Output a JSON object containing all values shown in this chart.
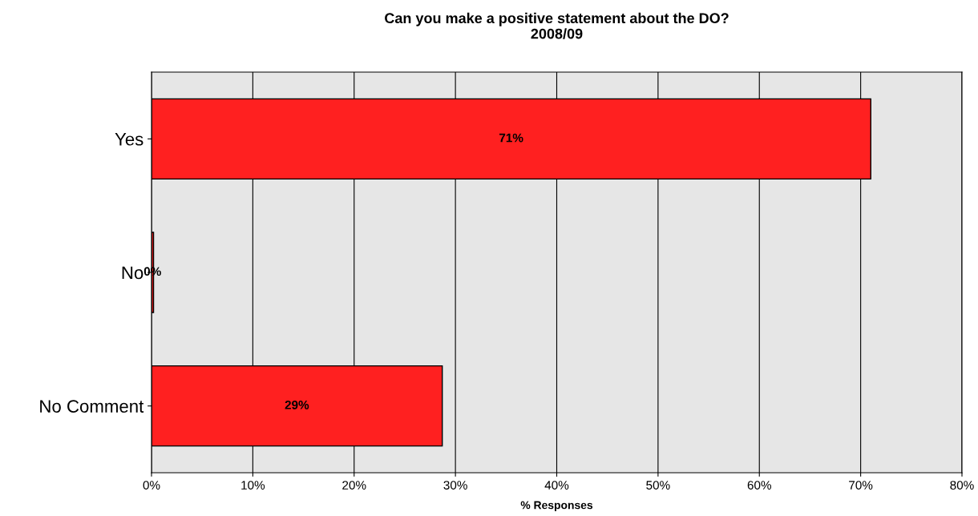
{
  "chart_data": {
    "type": "bar",
    "orientation": "horizontal",
    "title": "Can you make a positive statement about the DO?\n2008/09",
    "xlabel": "% Responses",
    "categories": [
      "Yes",
      "No",
      "No Comment"
    ],
    "values": [
      71,
      0.2,
      28.7
    ],
    "value_labels": [
      "71%",
      "0%",
      "29%"
    ],
    "color": "#ff2020",
    "xlim": [
      0,
      80
    ],
    "xticks": [
      {
        "value": 0,
        "label": "0%"
      },
      {
        "value": 10,
        "label": "10%"
      },
      {
        "value": 20,
        "label": "20%"
      },
      {
        "value": 30,
        "label": "30%"
      },
      {
        "value": 40,
        "label": "40%"
      },
      {
        "value": 50,
        "label": "50%"
      },
      {
        "value": 60,
        "label": "60%"
      },
      {
        "value": 70,
        "label": "70%"
      },
      {
        "value": 80,
        "label": "80%"
      }
    ],
    "grid": "x"
  }
}
